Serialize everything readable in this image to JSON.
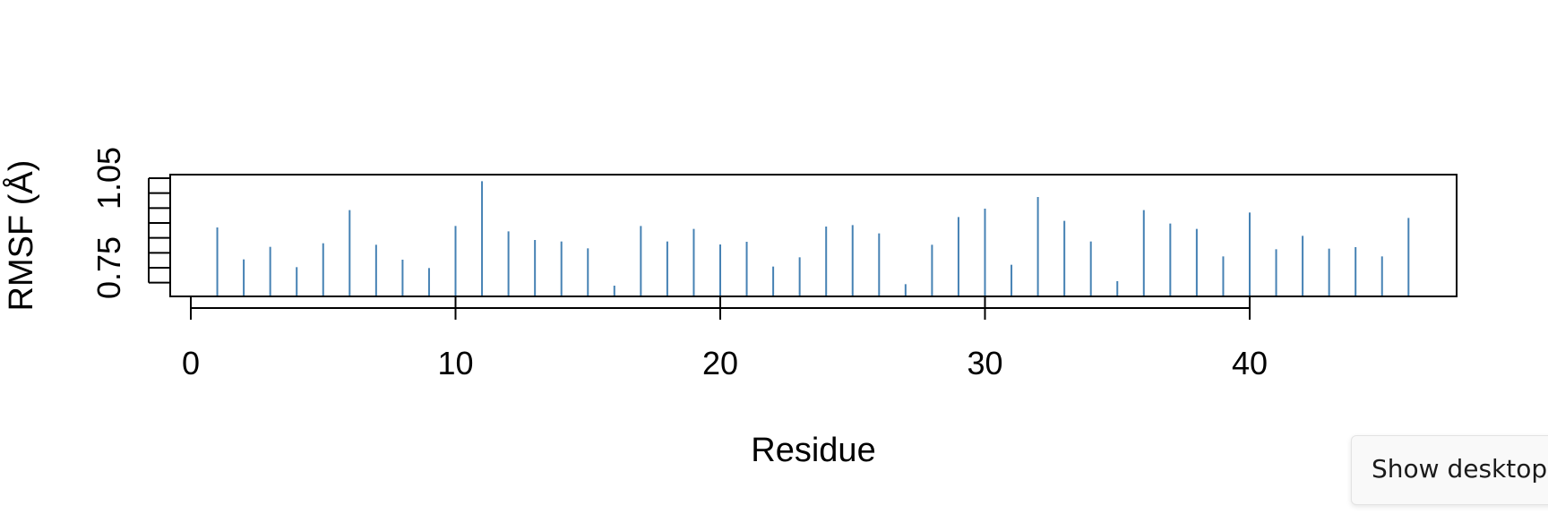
{
  "chart_data": {
    "type": "bar",
    "style": "spike",
    "xlabel": "Residue",
    "ylabel": "RMSF (Å)",
    "xlim": [
      0,
      48
    ],
    "ylim": [
      0.68,
      1.05
    ],
    "x_ticks": [
      0,
      10,
      20,
      30,
      40
    ],
    "y_ticks": [
      0.7,
      0.75,
      0.8,
      0.85,
      0.9,
      0.95,
      1.0,
      1.05
    ],
    "y_tick_labels": [
      {
        "value": 0.75,
        "label": "0.75"
      },
      {
        "value": 1.05,
        "label": "1.05"
      }
    ],
    "grid": false,
    "colors": {
      "bar": "#4682b4",
      "axis": "#000000"
    },
    "x": [
      1,
      2,
      3,
      4,
      5,
      6,
      7,
      8,
      9,
      10,
      11,
      12,
      13,
      14,
      15,
      16,
      17,
      18,
      19,
      20,
      21,
      22,
      23,
      24,
      25,
      26,
      27,
      28,
      29,
      30,
      31,
      32,
      33,
      34,
      35,
      36,
      37,
      38,
      39,
      40,
      41,
      42,
      43,
      44,
      45,
      46
    ],
    "values": [
      0.885,
      0.778,
      0.82,
      0.752,
      0.832,
      0.943,
      0.827,
      0.777,
      0.749,
      0.89,
      1.04,
      0.872,
      0.843,
      0.838,
      0.815,
      0.69,
      0.89,
      0.838,
      0.88,
      0.828,
      0.837,
      0.754,
      0.785,
      0.888,
      0.893,
      0.865,
      0.695,
      0.827,
      0.92,
      0.948,
      0.76,
      0.987,
      0.907,
      0.838,
      0.705,
      0.943,
      0.898,
      0.88,
      0.788,
      0.935,
      0.812,
      0.857,
      0.814,
      0.819,
      0.788,
      0.917
    ]
  },
  "taskbar_tooltip": {
    "label": "Show desktop"
  }
}
